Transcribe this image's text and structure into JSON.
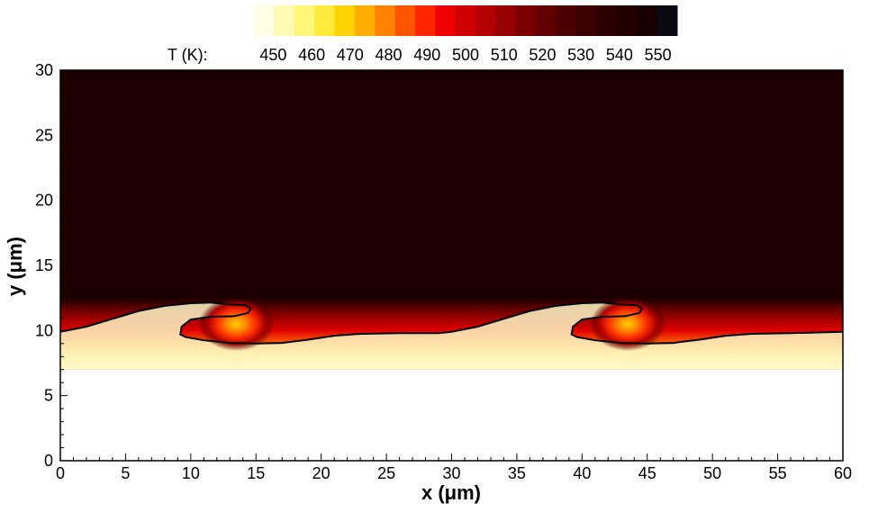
{
  "chart_data": {
    "type": "heatmap",
    "title": "",
    "xlabel": "x (μm)",
    "ylabel": "y (μm)",
    "xlim": [
      0,
      60
    ],
    "ylim": [
      0,
      30
    ],
    "x_ticks": [
      0,
      5,
      10,
      15,
      20,
      25,
      30,
      35,
      40,
      45,
      50,
      55,
      60
    ],
    "y_ticks": [
      0,
      5,
      10,
      15,
      20,
      25,
      30
    ],
    "colorbar": {
      "label": "T (K):",
      "ticks": [
        450,
        460,
        470,
        480,
        490,
        500,
        510,
        520,
        530,
        540,
        550
      ],
      "range": [
        445,
        555
      ],
      "position": "top",
      "colors": [
        "#fffde6",
        "#fffab4",
        "#fff67a",
        "#ffeb3b",
        "#ffd300",
        "#ffad00",
        "#ff8200",
        "#ff5400",
        "#ff2600",
        "#ec0000",
        "#d10000",
        "#b40000",
        "#960000",
        "#7a0000",
        "#610000",
        "#4c0000",
        "#3b0000",
        "#2d0000",
        "#220000",
        "#190000",
        "#0a0a14"
      ]
    },
    "field": {
      "hot_temperature_K": 550,
      "cold_temperature_K": 450,
      "upper_region_y_above": 12.5,
      "cold_region_y_below": 7
    },
    "interface_contour": [
      {
        "x": 0.0,
        "y": 9.9
      },
      {
        "x": 2.0,
        "y": 10.3
      },
      {
        "x": 4.0,
        "y": 10.9
      },
      {
        "x": 6.0,
        "y": 11.5
      },
      {
        "x": 8.0,
        "y": 11.9
      },
      {
        "x": 10.0,
        "y": 12.1
      },
      {
        "x": 11.5,
        "y": 12.15
      },
      {
        "x": 13.0,
        "y": 12.0
      },
      {
        "x": 14.2,
        "y": 11.95
      },
      {
        "x": 14.6,
        "y": 11.7
      },
      {
        "x": 14.4,
        "y": 11.35
      },
      {
        "x": 13.3,
        "y": 11.1
      },
      {
        "x": 11.5,
        "y": 11.05
      },
      {
        "x": 10.0,
        "y": 10.85
      },
      {
        "x": 9.3,
        "y": 10.3
      },
      {
        "x": 9.2,
        "y": 9.7
      },
      {
        "x": 9.6,
        "y": 9.5
      },
      {
        "x": 11.0,
        "y": 9.25
      },
      {
        "x": 13.0,
        "y": 9.05
      },
      {
        "x": 15.0,
        "y": 9.0
      },
      {
        "x": 17.0,
        "y": 9.05
      },
      {
        "x": 19.0,
        "y": 9.3
      },
      {
        "x": 21.0,
        "y": 9.6
      },
      {
        "x": 23.0,
        "y": 9.75
      },
      {
        "x": 26.0,
        "y": 9.8
      },
      {
        "x": 29.0,
        "y": 9.8
      },
      {
        "x": 30.0,
        "y": 9.9
      },
      {
        "x": 32.0,
        "y": 10.3
      },
      {
        "x": 34.0,
        "y": 10.9
      },
      {
        "x": 36.0,
        "y": 11.5
      },
      {
        "x": 38.0,
        "y": 11.9
      },
      {
        "x": 40.0,
        "y": 12.1
      },
      {
        "x": 41.5,
        "y": 12.15
      },
      {
        "x": 43.0,
        "y": 12.0
      },
      {
        "x": 44.2,
        "y": 11.95
      },
      {
        "x": 44.6,
        "y": 11.7
      },
      {
        "x": 44.4,
        "y": 11.35
      },
      {
        "x": 43.3,
        "y": 11.1
      },
      {
        "x": 41.5,
        "y": 11.05
      },
      {
        "x": 40.0,
        "y": 10.85
      },
      {
        "x": 39.3,
        "y": 10.3
      },
      {
        "x": 39.2,
        "y": 9.7
      },
      {
        "x": 39.6,
        "y": 9.5
      },
      {
        "x": 41.0,
        "y": 9.25
      },
      {
        "x": 43.0,
        "y": 9.05
      },
      {
        "x": 45.0,
        "y": 9.0
      },
      {
        "x": 47.0,
        "y": 9.05
      },
      {
        "x": 49.0,
        "y": 9.3
      },
      {
        "x": 51.0,
        "y": 9.6
      },
      {
        "x": 53.0,
        "y": 9.75
      },
      {
        "x": 56.0,
        "y": 9.8
      },
      {
        "x": 60.0,
        "y": 9.9
      }
    ],
    "hot_spots": [
      {
        "x": 13.5,
        "y": 10.5,
        "temperature_K": 480
      },
      {
        "x": 43.5,
        "y": 10.5,
        "temperature_K": 480
      }
    ],
    "grid": false,
    "legend": "none"
  }
}
